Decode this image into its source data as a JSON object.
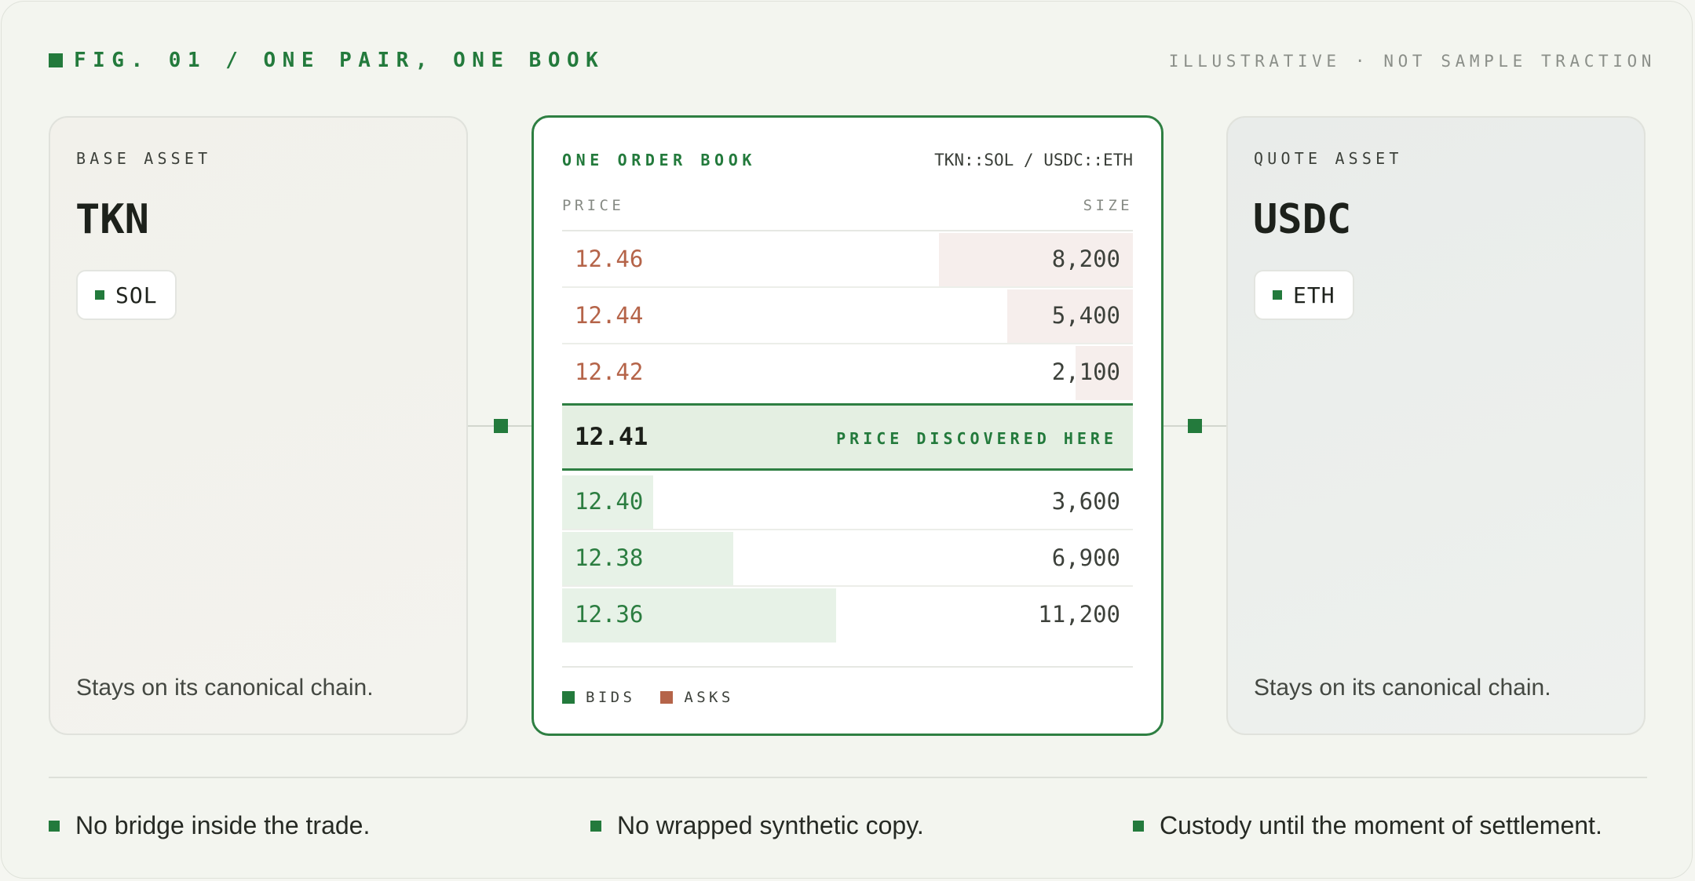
{
  "figure": {
    "title": "FIG. 01 / ONE PAIR, ONE BOOK",
    "note": "ILLUSTRATIVE · NOT SAMPLE TRACTION"
  },
  "base": {
    "label": "BASE ASSET",
    "name": "TKN",
    "chain": "SOL",
    "footnote": "Stays on its canonical chain."
  },
  "quote": {
    "label": "QUOTE ASSET",
    "name": "USDC",
    "chain": "ETH",
    "footnote": "Stays on its canonical chain."
  },
  "book": {
    "title": "ONE ORDER BOOK",
    "pair": "TKN::SOL / USDC::ETH",
    "price_header": "PRICE",
    "size_header": "SIZE",
    "asks": [
      {
        "price": "12.46",
        "size": "8,200",
        "depth": 0.34
      },
      {
        "price": "12.44",
        "size": "5,400",
        "depth": 0.22
      },
      {
        "price": "12.42",
        "size": "2,100",
        "depth": 0.1
      }
    ],
    "mid": {
      "price": "12.41",
      "note": "PRICE DISCOVERED HERE"
    },
    "bids": [
      {
        "price": "12.40",
        "size": "3,600",
        "depth": 0.16
      },
      {
        "price": "12.38",
        "size": "6,900",
        "depth": 0.3
      },
      {
        "price": "12.36",
        "size": "11,200",
        "depth": 0.48
      }
    ],
    "legend": {
      "bids": "BIDS",
      "asks": "ASKS"
    }
  },
  "colors": {
    "accent": "#237a3c",
    "ask": "#b56449",
    "ask_bar": "#f6eeec",
    "bid_bar": "#e7f2e7"
  },
  "bullets": [
    "No bridge inside the trade.",
    "No wrapped synthetic copy.",
    "Custody until the moment of settlement."
  ]
}
